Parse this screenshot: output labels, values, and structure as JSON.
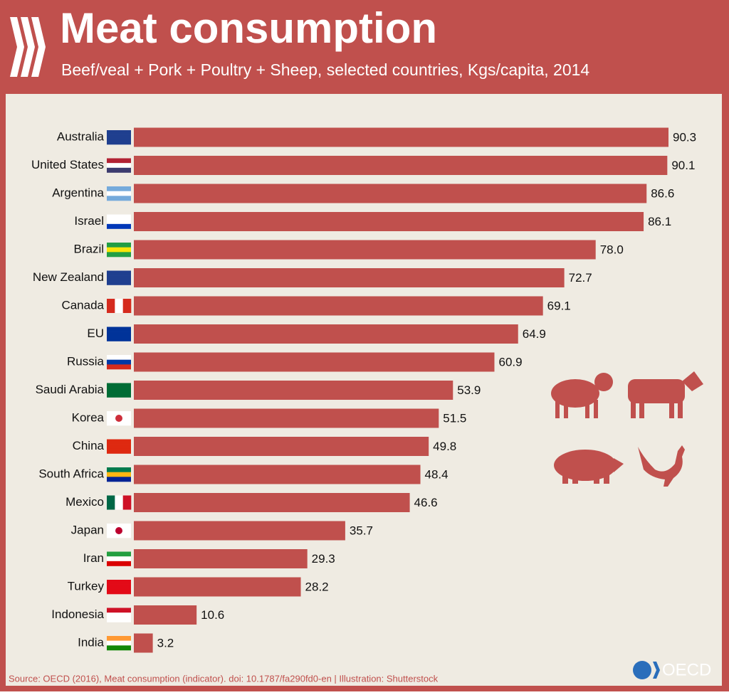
{
  "chart_data": {
    "type": "bar",
    "orientation": "horizontal",
    "title": "Meat consumption",
    "subtitle": "Beef/veal + Pork + Poultry + Sheep, selected countries, Kgs/capita, 2014",
    "categories": [
      "Australia",
      "United States",
      "Argentina",
      "Israel",
      "Brazil",
      "New Zealand",
      "Canada",
      "EU",
      "Russia",
      "Saudi Arabia",
      "Korea",
      "China",
      "South Africa",
      "Mexico",
      "Japan",
      "Iran",
      "Turkey",
      "Indonesia",
      "India"
    ],
    "values": [
      90.3,
      90.1,
      86.6,
      86.1,
      78.0,
      72.7,
      69.1,
      64.9,
      60.9,
      53.9,
      51.5,
      49.8,
      48.4,
      46.6,
      35.7,
      29.3,
      28.2,
      10.6,
      3.2
    ],
    "value_labels": [
      "90.3",
      "90.1",
      "86.6",
      "86.1",
      "78.0",
      "72.7",
      "69.1",
      "64.9",
      "60.9",
      "53.9",
      "51.5",
      "49.8",
      "48.4",
      "46.6",
      "35.7",
      "29.3",
      "28.2",
      "10.6",
      "3.2"
    ],
    "color": "#c0504d",
    "source": "Source: OECD (2016), Meat consumption (indicator). doi: 10.1787/fa290fd0-en | Illustration: Shutterstock",
    "logo": "OECD"
  }
}
